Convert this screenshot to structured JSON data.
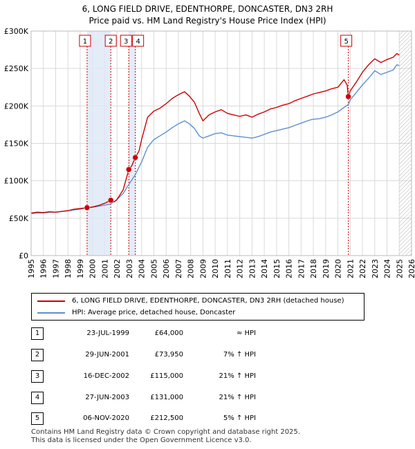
{
  "title_line1": "6, LONG FIELD DRIVE, EDENTHORPE, DONCASTER, DN3 2RH",
  "title_line2": "Price paid vs. HM Land Registry's House Price Index (HPI)",
  "chart_data": {
    "type": "line",
    "xlim": [
      1995,
      2026
    ],
    "ylim": [
      0,
      300000
    ],
    "ytick_values": [
      0,
      50000,
      100000,
      150000,
      200000,
      250000,
      300000
    ],
    "ytick_labels": [
      "£0",
      "£50K",
      "£100K",
      "£150K",
      "£200K",
      "£250K",
      "£300K"
    ],
    "xtick_labels": [
      "1995",
      "1996",
      "1997",
      "1998",
      "1999",
      "2000",
      "2001",
      "2002",
      "2003",
      "2004",
      "2005",
      "2006",
      "2007",
      "2008",
      "2009",
      "2010",
      "2011",
      "2012",
      "2013",
      "2014",
      "2015",
      "2016",
      "2017",
      "2018",
      "2019",
      "2020",
      "2021",
      "2022",
      "2023",
      "2024",
      "2025",
      "2026"
    ],
    "grid": true,
    "hatched_future_from": 2025.0,
    "series": [
      {
        "name": "6, LONG FIELD DRIVE, EDENTHORPE, DONCASTER, DN3 2RH (detached house)",
        "color": "#cc0000",
        "points": [
          [
            1995.0,
            57000
          ],
          [
            1995.5,
            58000
          ],
          [
            1996.0,
            57500
          ],
          [
            1996.5,
            58500
          ],
          [
            1997.0,
            58000
          ],
          [
            1997.5,
            59000
          ],
          [
            1998.0,
            60000
          ],
          [
            1998.5,
            62000
          ],
          [
            1999.0,
            63000
          ],
          [
            1999.56,
            64000
          ],
          [
            2000.0,
            65000
          ],
          [
            2000.5,
            67000
          ],
          [
            2001.0,
            70000
          ],
          [
            2001.49,
            73950
          ],
          [
            2001.8,
            72000
          ],
          [
            2002.0,
            75000
          ],
          [
            2002.5,
            88000
          ],
          [
            2002.96,
            115000
          ],
          [
            2003.2,
            120000
          ],
          [
            2003.49,
            131000
          ],
          [
            2003.8,
            140000
          ],
          [
            2004.0,
            155000
          ],
          [
            2004.5,
            185000
          ],
          [
            2005.0,
            193000
          ],
          [
            2005.5,
            197000
          ],
          [
            2006.0,
            203000
          ],
          [
            2006.5,
            210000
          ],
          [
            2007.0,
            215000
          ],
          [
            2007.5,
            219000
          ],
          [
            2007.9,
            213000
          ],
          [
            2008.3,
            205000
          ],
          [
            2008.7,
            190000
          ],
          [
            2009.0,
            180000
          ],
          [
            2009.5,
            188000
          ],
          [
            2010.0,
            192000
          ],
          [
            2010.5,
            195000
          ],
          [
            2011.0,
            190000
          ],
          [
            2011.5,
            188000
          ],
          [
            2012.0,
            186000
          ],
          [
            2012.5,
            188000
          ],
          [
            2013.0,
            185000
          ],
          [
            2013.5,
            189000
          ],
          [
            2014.0,
            192000
          ],
          [
            2014.5,
            196000
          ],
          [
            2015.0,
            198000
          ],
          [
            2015.5,
            201000
          ],
          [
            2016.0,
            203000
          ],
          [
            2016.5,
            207000
          ],
          [
            2017.0,
            210000
          ],
          [
            2017.5,
            213000
          ],
          [
            2018.0,
            216000
          ],
          [
            2018.5,
            218000
          ],
          [
            2019.0,
            220000
          ],
          [
            2019.5,
            223000
          ],
          [
            2020.0,
            225000
          ],
          [
            2020.5,
            235000
          ],
          [
            2020.75,
            228000
          ],
          [
            2020.85,
            212500
          ],
          [
            2021.0,
            220000
          ],
          [
            2021.5,
            232000
          ],
          [
            2022.0,
            245000
          ],
          [
            2022.5,
            255000
          ],
          [
            2023.0,
            263000
          ],
          [
            2023.5,
            258000
          ],
          [
            2024.0,
            262000
          ],
          [
            2024.5,
            265000
          ],
          [
            2024.8,
            270000
          ],
          [
            2025.0,
            268000
          ]
        ]
      },
      {
        "name": "HPI: Average price, detached house, Doncaster",
        "color": "#5b8fd0",
        "points": [
          [
            1995.0,
            56000
          ],
          [
            1995.5,
            57000
          ],
          [
            1996.0,
            57000
          ],
          [
            1996.5,
            58000
          ],
          [
            1997.0,
            58000
          ],
          [
            1997.5,
            59000
          ],
          [
            1998.0,
            60000
          ],
          [
            1998.5,
            61000
          ],
          [
            1999.0,
            62000
          ],
          [
            1999.56,
            64000
          ],
          [
            2000.0,
            64500
          ],
          [
            2000.5,
            66000
          ],
          [
            2001.0,
            67500
          ],
          [
            2001.49,
            69000
          ],
          [
            2002.0,
            75000
          ],
          [
            2002.5,
            83000
          ],
          [
            2002.96,
            95000
          ],
          [
            2003.49,
            108000
          ],
          [
            2004.0,
            125000
          ],
          [
            2004.5,
            145000
          ],
          [
            2005.0,
            155000
          ],
          [
            2005.5,
            160000
          ],
          [
            2006.0,
            165000
          ],
          [
            2006.5,
            171000
          ],
          [
            2007.0,
            176000
          ],
          [
            2007.5,
            180000
          ],
          [
            2007.9,
            176000
          ],
          [
            2008.3,
            170000
          ],
          [
            2008.7,
            160000
          ],
          [
            2009.0,
            157000
          ],
          [
            2009.5,
            160000
          ],
          [
            2010.0,
            163000
          ],
          [
            2010.5,
            164000
          ],
          [
            2011.0,
            161000
          ],
          [
            2011.5,
            160000
          ],
          [
            2012.0,
            159000
          ],
          [
            2012.5,
            158000
          ],
          [
            2013.0,
            157000
          ],
          [
            2013.5,
            159000
          ],
          [
            2014.0,
            162000
          ],
          [
            2014.5,
            165000
          ],
          [
            2015.0,
            167000
          ],
          [
            2015.5,
            169000
          ],
          [
            2016.0,
            171000
          ],
          [
            2016.5,
            174000
          ],
          [
            2017.0,
            177000
          ],
          [
            2017.5,
            180000
          ],
          [
            2017.9,
            182000
          ],
          [
            2018.5,
            183000
          ],
          [
            2019.0,
            185000
          ],
          [
            2019.5,
            188000
          ],
          [
            2020.0,
            192000
          ],
          [
            2020.5,
            198000
          ],
          [
            2020.85,
            202000
          ],
          [
            2021.0,
            208000
          ],
          [
            2021.5,
            218000
          ],
          [
            2022.0,
            228000
          ],
          [
            2022.5,
            237000
          ],
          [
            2023.0,
            247000
          ],
          [
            2023.5,
            242000
          ],
          [
            2024.0,
            245000
          ],
          [
            2024.5,
            248000
          ],
          [
            2024.8,
            255000
          ],
          [
            2025.0,
            254000
          ]
        ]
      }
    ],
    "sales": [
      {
        "label": "1",
        "x": 1999.56,
        "price": 64000
      },
      {
        "label": "2",
        "x": 2001.49,
        "price": 73950
      },
      {
        "label": "3",
        "x": 2002.96,
        "price": 115000
      },
      {
        "label": "4",
        "x": 2003.49,
        "price": 131000
      },
      {
        "label": "5",
        "x": 2020.85,
        "price": 212500
      }
    ],
    "shaded_spans": [
      [
        1999.56,
        2001.49
      ],
      [
        2002.96,
        2003.49
      ]
    ]
  },
  "legend": {
    "property_label": "6, LONG FIELD DRIVE, EDENTHORPE, DONCASTER, DN3 2RH (detached house)",
    "property_color": "#cc0000",
    "hpi_label": "HPI: Average price, detached house, Doncaster",
    "hpi_color": "#5b8fd0"
  },
  "transactions": [
    {
      "num": "1",
      "date": "23-JUL-1999",
      "price": "£64,000",
      "hpi": "≈ HPI"
    },
    {
      "num": "2",
      "date": "29-JUN-2001",
      "price": "£73,950",
      "hpi": "7% ↑ HPI"
    },
    {
      "num": "3",
      "date": "16-DEC-2002",
      "price": "£115,000",
      "hpi": "21% ↑ HPI"
    },
    {
      "num": "4",
      "date": "27-JUN-2003",
      "price": "£131,000",
      "hpi": "21% ↑ HPI"
    },
    {
      "num": "5",
      "date": "06-NOV-2020",
      "price": "£212,500",
      "hpi": "5% ↑ HPI"
    }
  ],
  "footer_line1": "Contains HM Land Registry data © Crown copyright and database right 2025.",
  "footer_line2": "This data is licensed under the Open Government Licence v3.0."
}
